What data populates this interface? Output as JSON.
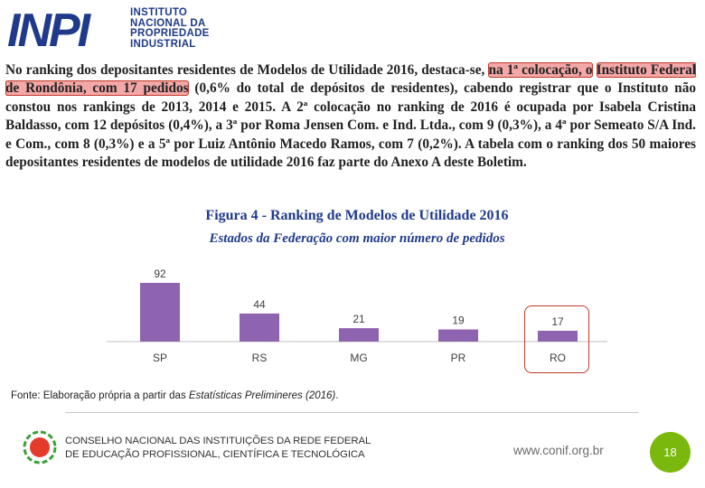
{
  "logo": {
    "letters": "INPI",
    "name_lines": [
      "INSTITUTO",
      "NACIONAL DA",
      "PROPRIEDADE",
      "INDUSTRIAL"
    ]
  },
  "paragraph": {
    "p1": "No ranking dos depositantes residentes de ",
    "bold1": "Modelos de Utilidade 2016",
    "p2": ", destaca-se, ",
    "highlight1": "na 1ª colocação, o",
    "sep": " ",
    "highlight2": "Instituto Federal de Rondônia, com 17 pedidos",
    "p3": " (0,6% do total de depósitos de residentes), cabendo registrar que o Instituto não constou nos rankings de 2013, 2014 e 2015. A 2ª colocação no ranking de 2016 é ocupada por Isabela Cristina Baldasso, com 12 depósitos (0,4%), a 3ª por Roma Jensen Com. e Ind. Ltda., com 9 (0,3%), a 4ª por Semeato S/A Ind. e Com., com 8 (0,3%) e a 5ª por Luiz Antônio Macedo Ramos, com 7 (0,2%).   A tabela com o ranking dos 50 maiores depositantes residentes de modelos de utilidade 2016 faz parte do Anexo A deste Boletim."
  },
  "figure": {
    "title": "Figura 4 - Ranking de Modelos de Utilidade 2016",
    "subtitle": "Estados da Federação com maior número de pedidos"
  },
  "chart_data": {
    "type": "bar",
    "categories": [
      "SP",
      "RS",
      "MG",
      "PR",
      "RO"
    ],
    "values": [
      92,
      44,
      21,
      19,
      17
    ],
    "title": "",
    "xlabel": "",
    "ylabel": "",
    "ylim": [
      0,
      92
    ],
    "highlight_category": "RO",
    "bar_color": "#8e64b0",
    "grid": false,
    "legend": "none"
  },
  "source": {
    "prefix": "Fonte: Elaboração própria a partir das ",
    "italic": "Estatísticas Prelimineres (2016)",
    "suffix": "."
  },
  "footer": {
    "conif_line1": "CONSELHO NACIONAL DAS INSTITUIÇÕES DA REDE FEDERAL",
    "conif_line2": "DE EDUCAÇÃO PROFISSIONAL, CIENTÍFICA E TECNOLÓGICA",
    "url": "www.conif.org.br",
    "page_number": "18"
  },
  "colors": {
    "accent": "#1f3a8a",
    "highlight": "#f4a7a7",
    "highlight_border": "#c0392b",
    "page_badge": "#7ab80e"
  }
}
